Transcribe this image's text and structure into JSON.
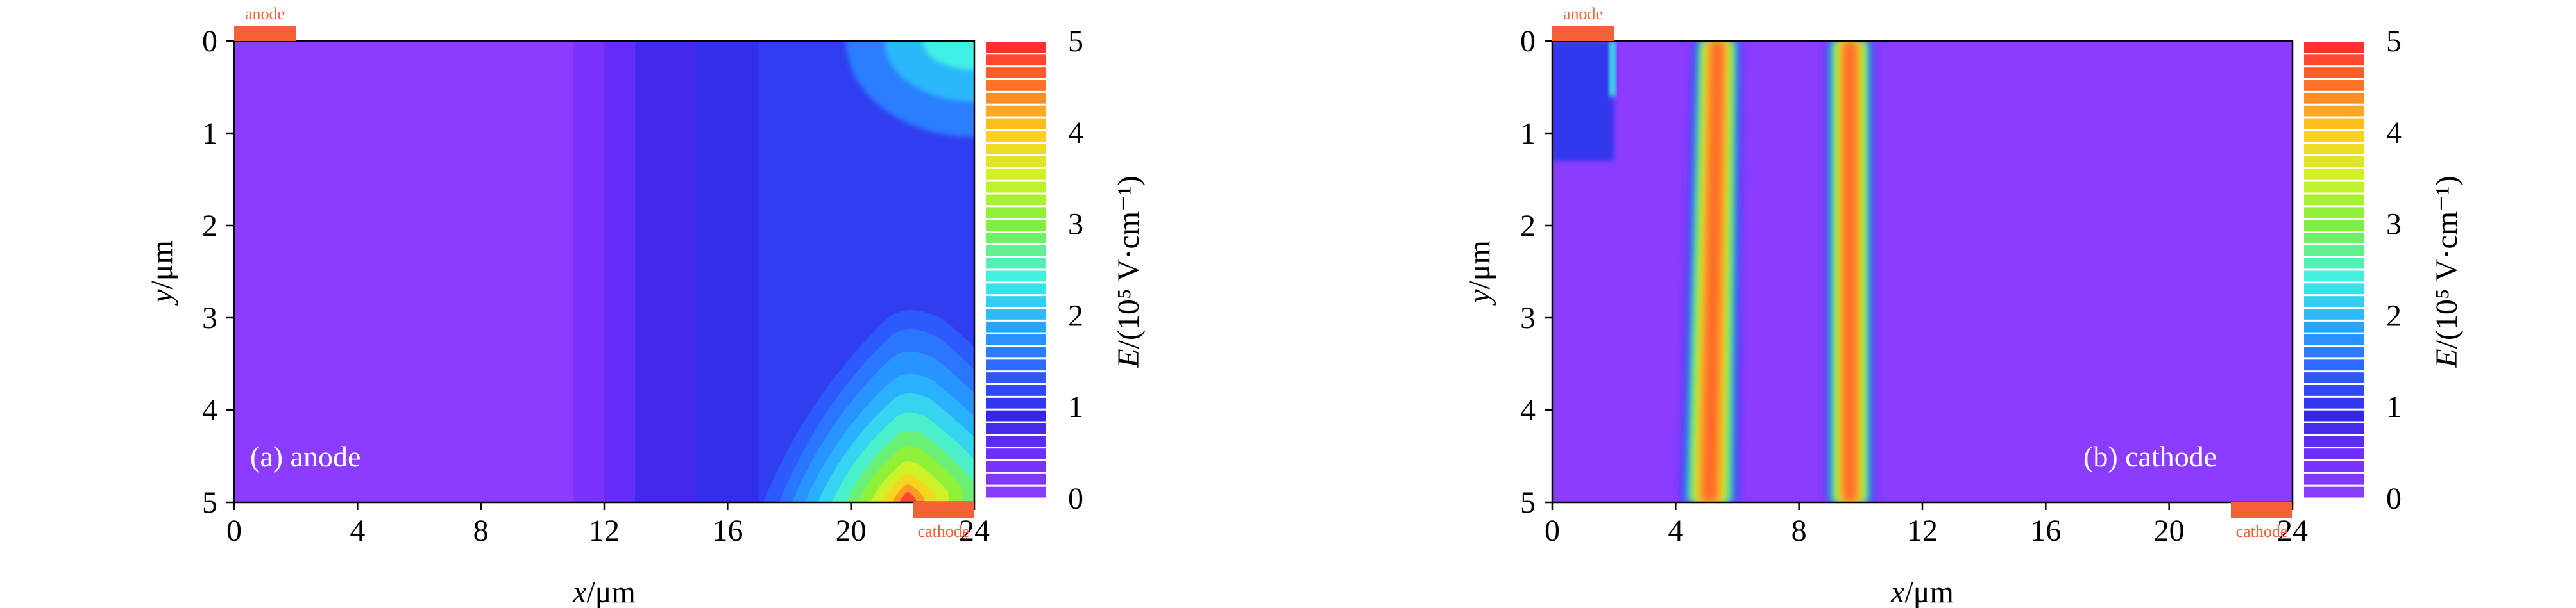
{
  "chart_data": [
    {
      "type": "heatmap",
      "panel_label": "(a) anode",
      "xlabel_var": "x",
      "xlabel_unit": "/μm",
      "ylabel_var": "y",
      "ylabel_unit": "/μm",
      "xlim": [
        0,
        24
      ],
      "ylim": [
        0,
        5
      ],
      "y_inverted": true,
      "x_ticks": [
        "0",
        "4",
        "8",
        "12",
        "16",
        "20",
        "24"
      ],
      "y_ticks": [
        "0",
        "1",
        "2",
        "3",
        "4",
        "5"
      ],
      "colorbar": {
        "label_var": "E",
        "label_unit": "/(10⁵ V·cm⁻¹)",
        "range": [
          0,
          5
        ],
        "ticks": [
          "0",
          "1",
          "2",
          "3",
          "4",
          "5"
        ]
      },
      "contacts": [
        {
          "name": "anode",
          "x_range": [
            0,
            2
          ],
          "side": "top"
        },
        {
          "name": "cathode",
          "x_range": [
            22,
            24
          ],
          "side": "bottom"
        }
      ],
      "field_regions": [
        {
          "x_range": [
            0,
            11
          ],
          "E": 0.05
        },
        {
          "x_range": [
            11,
            12
          ],
          "E": 0.35
        },
        {
          "x_range": [
            12,
            13
          ],
          "E": 0.55
        },
        {
          "x_range": [
            13,
            15
          ],
          "E": 0.8
        },
        {
          "x_range": [
            15,
            17
          ],
          "E": 0.95
        },
        {
          "x_range": [
            17,
            24
          ],
          "E": 1.1
        }
      ],
      "field_peak": {
        "x": 22,
        "y": 5,
        "E": 4.8
      }
    },
    {
      "type": "heatmap",
      "panel_label": "(b) cathode",
      "xlabel_var": "x",
      "xlabel_unit": "/μm",
      "ylabel_var": "y",
      "ylabel_unit": "/μm",
      "xlim": [
        0,
        24
      ],
      "ylim": [
        0,
        5
      ],
      "y_inverted": true,
      "x_ticks": [
        "0",
        "4",
        "8",
        "12",
        "16",
        "20",
        "24"
      ],
      "y_ticks": [
        "0",
        "1",
        "2",
        "3",
        "4",
        "5"
      ],
      "colorbar": {
        "label_var": "E",
        "label_unit": "/(10⁵ V·cm⁻¹)",
        "range": [
          0,
          5
        ],
        "ticks": [
          "0",
          "1",
          "2",
          "3",
          "4",
          "5"
        ]
      },
      "contacts": [
        {
          "name": "anode",
          "x_range": [
            0,
            2
          ],
          "side": "top"
        },
        {
          "name": "cathode",
          "x_range": [
            22,
            24
          ],
          "side": "bottom"
        }
      ],
      "background_E": 0.05,
      "corner_region": {
        "x_range": [
          0,
          2
        ],
        "y_range": [
          0,
          1.3
        ],
        "E": 1.0
      },
      "high_field_bands": [
        {
          "x_top": [
            4.6,
            6.1
          ],
          "x_bottom": [
            4.2,
            6.0
          ],
          "peak_E": 4.8
        },
        {
          "x_range": [
            8.9,
            10.4
          ],
          "peak_E": 4.8
        }
      ]
    }
  ],
  "colors": {
    "contact": "#f26236",
    "axis": "#000000",
    "panel_label": "#ffffff"
  }
}
